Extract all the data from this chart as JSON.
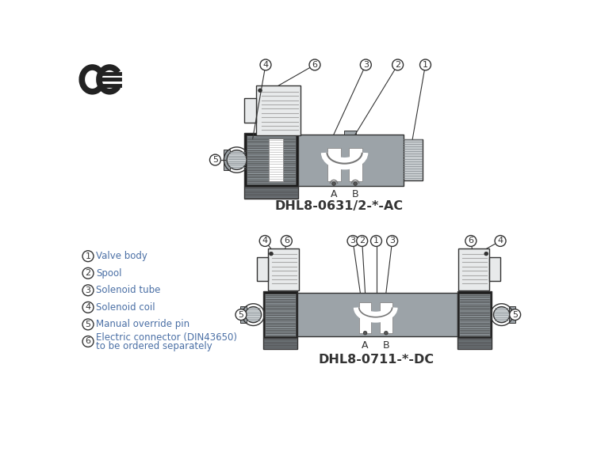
{
  "bg_color": "#ffffff",
  "text_color": "#4a6fa5",
  "line_color": "#333333",
  "model1": "DHL8-0631/2-*-AC",
  "model2": "DHL8-0711-*-DC",
  "legend_items": [
    {
      "num": "1",
      "text": "Valve body"
    },
    {
      "num": "2",
      "text": "Spool"
    },
    {
      "num": "3",
      "text": "Solenoid tube"
    },
    {
      "num": "4",
      "text": "Solenoid coil"
    },
    {
      "num": "5",
      "text": "Manual override pin"
    },
    {
      "num": "6",
      "text": "Electric connector (DIN43650)\nto be ordered separately"
    }
  ],
  "gray_body": "#9ca3a8",
  "gray_dark": "#6b7175",
  "gray_light": "#c8cdd0",
  "gray_med": "#858c90",
  "black_sol": "#1a1a1a",
  "hatch_color": "#555555",
  "white_pass": "#ffffff",
  "connector_bg": "#e8eaeb"
}
